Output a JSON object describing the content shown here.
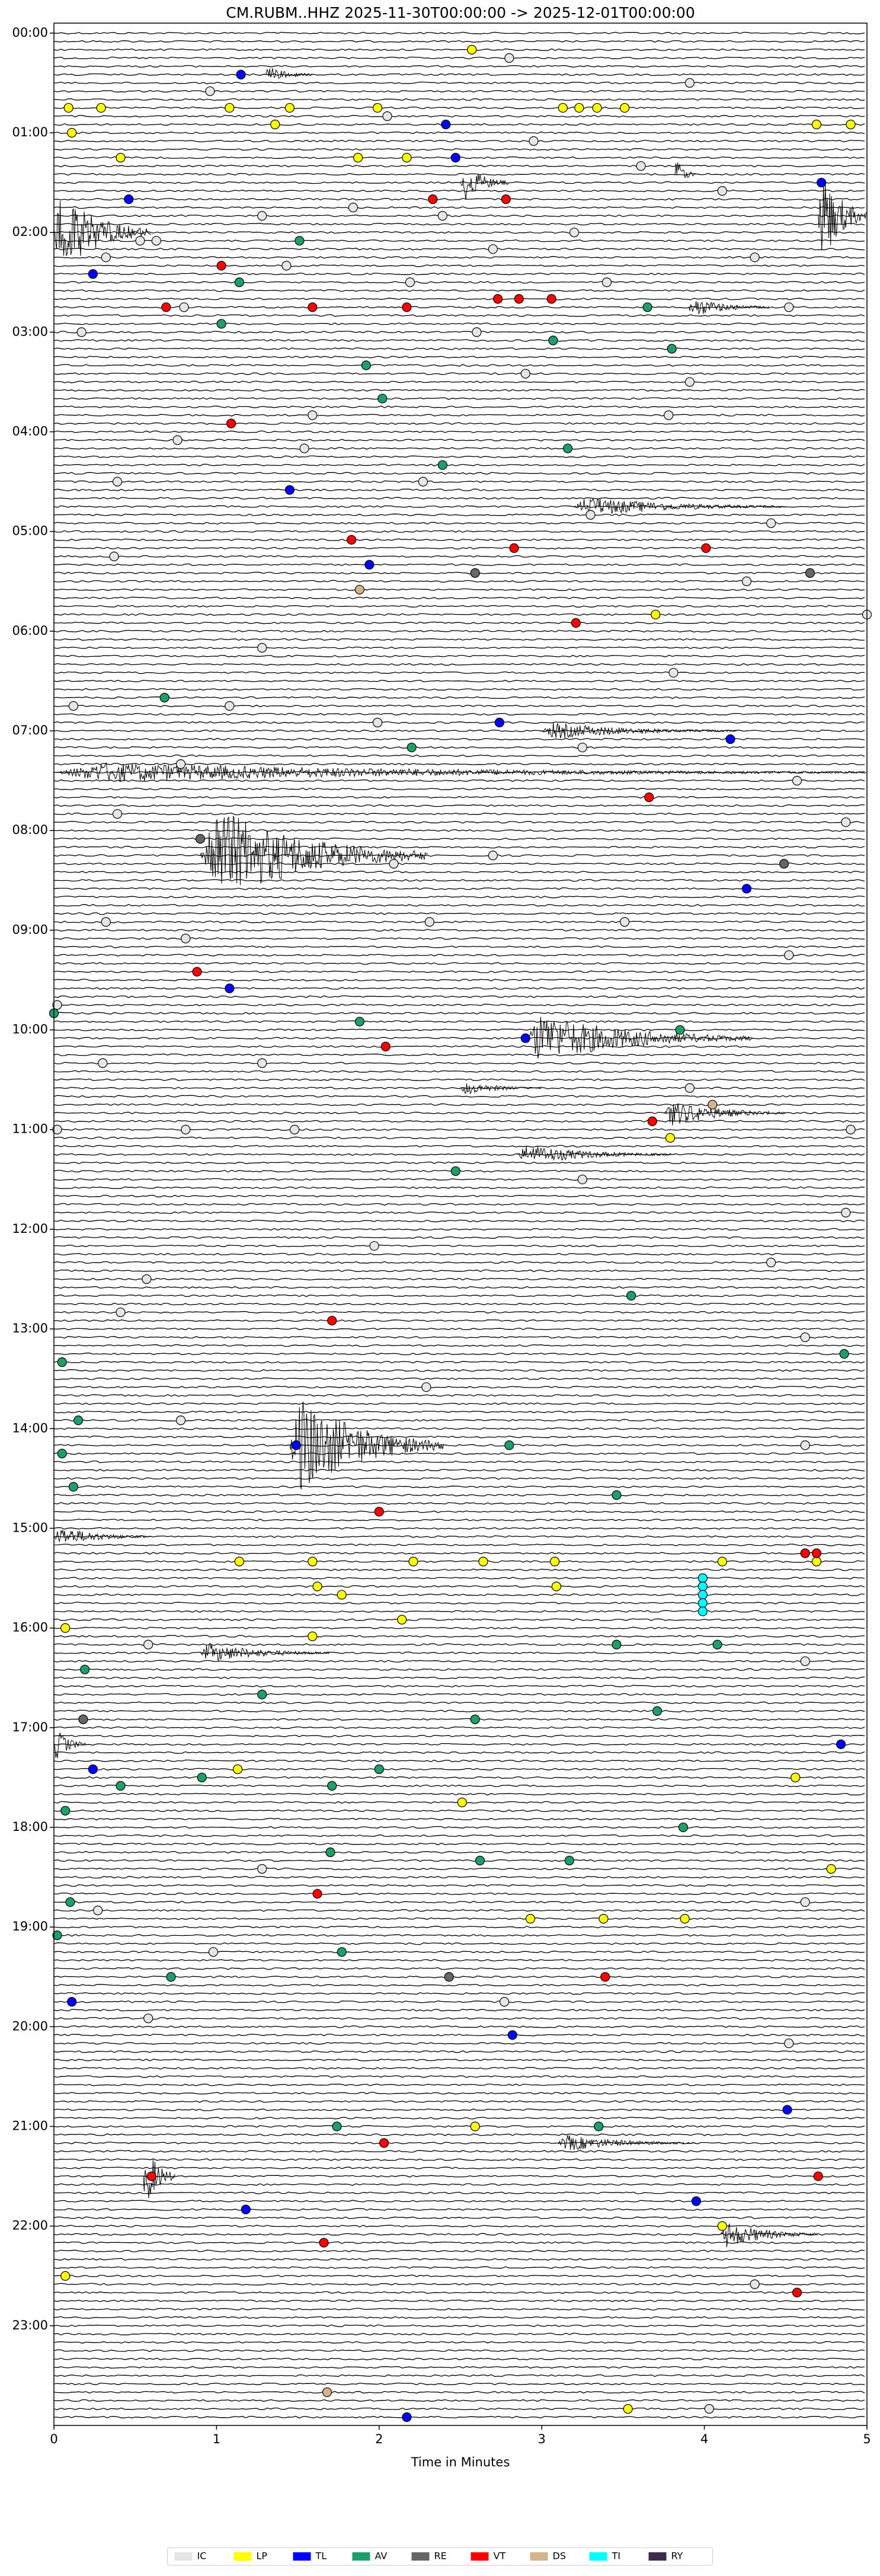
{
  "chart_data": {
    "type": "helicorder",
    "title": "CM.RUBM..HHZ  2025-11-30T00:00:00 -> 2025-12-01T00:00:00",
    "xlabel": "Time in Minutes",
    "xlim": [
      0,
      5
    ],
    "xticks": [
      0,
      1,
      2,
      3,
      4,
      5
    ],
    "ylim": [
      -6,
      1440
    ],
    "y_inverted": true,
    "yticks": [
      {
        "value": 0,
        "label": "00:00"
      },
      {
        "value": 60,
        "label": "01:00"
      },
      {
        "value": 120,
        "label": "02:00"
      },
      {
        "value": 180,
        "label": "03:00"
      },
      {
        "value": 240,
        "label": "04:00"
      },
      {
        "value": 300,
        "label": "05:00"
      },
      {
        "value": 360,
        "label": "06:00"
      },
      {
        "value": 420,
        "label": "07:00"
      },
      {
        "value": 480,
        "label": "08:00"
      },
      {
        "value": 540,
        "label": "09:00"
      },
      {
        "value": 600,
        "label": "10:00"
      },
      {
        "value": 660,
        "label": "11:00"
      },
      {
        "value": 720,
        "label": "12:00"
      },
      {
        "value": 780,
        "label": "13:00"
      },
      {
        "value": 840,
        "label": "14:00"
      },
      {
        "value": 900,
        "label": "15:00"
      },
      {
        "value": 960,
        "label": "16:00"
      },
      {
        "value": 1020,
        "label": "17:00"
      },
      {
        "value": 1080,
        "label": "18:00"
      },
      {
        "value": 1140,
        "label": "19:00"
      },
      {
        "value": 1200,
        "label": "20:00"
      },
      {
        "value": 1260,
        "label": "21:00"
      },
      {
        "value": 1320,
        "label": "22:00"
      },
      {
        "value": 1380,
        "label": "23:00"
      }
    ],
    "legend_loc": "lower center",
    "bursts": [
      {
        "y": 90,
        "x0": 2.5,
        "x1": 2.8,
        "amp": 12
      },
      {
        "y": 85,
        "x0": 3.82,
        "x1": 3.95,
        "amp": 10
      },
      {
        "y": 120,
        "x0": 0,
        "x1": 0.6,
        "amp": 25
      },
      {
        "y": 110,
        "x0": 4.7,
        "x1": 5,
        "amp": 30
      },
      {
        "y": 165,
        "x0": 3.9,
        "x1": 4.4,
        "amp": 6
      },
      {
        "y": 25,
        "x0": 1.3,
        "x1": 1.6,
        "amp": 5
      },
      {
        "y": 285,
        "x0": 3.2,
        "x1": 4.5,
        "amp": 6
      },
      {
        "y": 420,
        "x0": 3.0,
        "x1": 4.2,
        "amp": 5
      },
      {
        "y": 445,
        "x0": 0,
        "x1": 5,
        "amp": 6
      },
      {
        "y": 495,
        "x0": 0.9,
        "x1": 2.3,
        "amp": 30
      },
      {
        "y": 605,
        "x0": 2.9,
        "x1": 4.3,
        "amp": 15
      },
      {
        "y": 635,
        "x0": 2.5,
        "x1": 3.0,
        "amp": 4
      },
      {
        "y": 650,
        "x0": 3.75,
        "x1": 4.5,
        "amp": 8
      },
      {
        "y": 675,
        "x0": 2.85,
        "x1": 3.8,
        "amp": 6
      },
      {
        "y": 850,
        "x0": 1.45,
        "x1": 2.4,
        "amp": 30
      },
      {
        "y": 905,
        "x0": 0,
        "x1": 0.6,
        "amp": 6
      },
      {
        "y": 975,
        "x0": 0.9,
        "x1": 1.7,
        "amp": 6
      },
      {
        "y": 1030,
        "x0": 0,
        "x1": 0.2,
        "amp": 10
      },
      {
        "y": 1270,
        "x0": 3.1,
        "x1": 3.95,
        "amp": 5
      },
      {
        "y": 1290,
        "x0": 0.55,
        "x1": 0.75,
        "amp": 20
      },
      {
        "y": 1325,
        "x0": 4.1,
        "x1": 4.7,
        "amp": 8
      }
    ],
    "series": [
      {
        "name": "IC",
        "color": "#e6e6e6",
        "x": [
          0.96,
          3.91,
          2.8,
          2.05,
          2.95,
          3.61,
          4.11,
          1.28,
          1.84,
          2.39,
          3.2,
          0.53,
          0.63,
          2.7,
          4.31,
          0.32,
          1.43,
          2.19,
          3.4,
          0.8,
          4.52,
          0.17,
          2.6,
          3.91,
          2.9,
          1.59,
          0.76,
          3.78,
          1.54,
          0.39,
          2.27,
          3.3,
          4.41,
          0.37,
          4.26,
          5,
          1.28,
          3.81,
          0.12,
          1.08,
          1.99,
          3.25,
          0.78,
          4.57,
          0.39,
          2.7,
          2.09,
          4.87,
          3.51,
          2.31,
          0.32,
          0.81,
          4.52,
          0.02,
          1.28,
          3.91,
          0.3,
          0.02,
          0.81,
          1.48,
          4.9,
          3.25,
          1.97,
          4.87,
          4.41,
          0.57,
          0.41,
          4.62,
          2.29,
          0.78,
          4.62,
          0.58,
          4.62,
          1.28,
          4.62,
          0.27,
          0.98,
          2.77,
          0.58,
          4.52,
          4.31,
          4.03
        ],
        "y": [
          35,
          30,
          15,
          50,
          65,
          80,
          95,
          110,
          105,
          110,
          120,
          125,
          125,
          130,
          135,
          135,
          140,
          150,
          150,
          165,
          165,
          180,
          180,
          210,
          205,
          230,
          245,
          230,
          250,
          270,
          270,
          290,
          295,
          315,
          330,
          350,
          370,
          385,
          405,
          405,
          415,
          430,
          440,
          450,
          470,
          495,
          500,
          475,
          535,
          535,
          535,
          545,
          555,
          585,
          620,
          635,
          620,
          660,
          660,
          660,
          660,
          690,
          730,
          710,
          740,
          750,
          770,
          785,
          815,
          835,
          850,
          970,
          980,
          1105,
          1125,
          1130,
          1155,
          1185,
          1195,
          1210,
          1355,
          1430
        ]
      },
      {
        "name": "LP",
        "color": "#ffff00",
        "x": [
          2.57,
          0.09,
          0.29,
          1.08,
          1.45,
          1.99,
          3.13,
          3.23,
          3.34,
          3.51,
          1.36,
          4.69,
          4.9,
          0.11,
          0.41,
          1.87,
          2.17,
          3.7,
          3.79,
          4.11,
          4.69,
          1.14,
          1.59,
          2.21,
          2.64,
          3.08,
          1.62,
          1.77,
          2.14,
          1.59,
          0.07,
          3.09,
          1.13,
          4.56,
          2.51,
          4.78,
          2.93,
          3.38,
          3.88,
          2.59,
          4.11,
          0.07,
          3.53
        ],
        "y": [
          10,
          45,
          45,
          45,
          45,
          45,
          45,
          45,
          45,
          45,
          55,
          55,
          55,
          60,
          75,
          75,
          75,
          350,
          665,
          920,
          920,
          920,
          920,
          920,
          920,
          920,
          935,
          940,
          955,
          965,
          960,
          935,
          1045,
          1050,
          1065,
          1105,
          1135,
          1135,
          1135,
          1260,
          1320,
          1350,
          1430
        ]
      },
      {
        "name": "TL",
        "color": "#0000ff",
        "x": [
          1.15,
          2.41,
          2.47,
          0.46,
          4.72,
          0.24,
          1.45,
          1.94,
          2.74,
          4.16,
          4.26,
          1.08,
          2.9,
          1.49,
          0.24,
          4.84,
          2.82,
          0.11,
          4.51,
          1.18,
          3.95,
          2.17
        ],
        "y": [
          25,
          55,
          75,
          100,
          90,
          145,
          275,
          320,
          415,
          425,
          515,
          575,
          605,
          850,
          1045,
          1030,
          1205,
          1185,
          1250,
          1310,
          1305,
          1435
        ]
      },
      {
        "name": "AV",
        "color": "#1f9e6a",
        "x": [
          1.51,
          1.14,
          1.03,
          3.65,
          3.8,
          3.07,
          1.92,
          2.02,
          3.16,
          2.39,
          0.68,
          2.2,
          0,
          1.88,
          3.85,
          2.47,
          3.55,
          0.05,
          4.86,
          0.15,
          0.05,
          2.8,
          3.46,
          0.12,
          4.08,
          3.46,
          0.19,
          1.28,
          2.59,
          3.71,
          2.0,
          0.41,
          0.91,
          1.71,
          0.07,
          3.87,
          1.7,
          2.62,
          3.17,
          0.1,
          0.72,
          1.77,
          0.02,
          1.74,
          3.35
        ],
        "y": [
          125,
          150,
          175,
          165,
          190,
          185,
          200,
          220,
          250,
          260,
          400,
          430,
          590,
          595,
          600,
          685,
          760,
          800,
          795,
          835,
          855,
          850,
          880,
          875,
          970,
          970,
          985,
          1000,
          1015,
          1010,
          1045,
          1055,
          1050,
          1055,
          1070,
          1080,
          1095,
          1100,
          1100,
          1125,
          1170,
          1155,
          1145,
          1260,
          1260
        ]
      },
      {
        "name": "RE",
        "color": "#666666",
        "x": [
          0.9,
          2.59,
          4.65,
          4.49,
          2.43,
          0.18
        ],
        "y": [
          485,
          325,
          325,
          500,
          1170,
          1015
        ]
      },
      {
        "name": "VT",
        "color": "#ff0000",
        "x": [
          2.33,
          2.78,
          1.03,
          0.69,
          1.59,
          2.17,
          2.73,
          2.86,
          3.06,
          1.09,
          1.83,
          2.83,
          4.01,
          3.21,
          3.66,
          0.88,
          2.04,
          3.68,
          1.71,
          2.0,
          4.62,
          4.69,
          1.62,
          3.39,
          2.03,
          1.66,
          4.7,
          0.6,
          4.57
        ],
        "y": [
          100,
          100,
          140,
          165,
          165,
          165,
          160,
          160,
          160,
          235,
          305,
          310,
          310,
          355,
          460,
          565,
          610,
          655,
          775,
          890,
          915,
          915,
          1120,
          1170,
          1270,
          1330,
          1290,
          1290,
          1360
        ]
      },
      {
        "name": "DS",
        "color": "#d2b48c",
        "x": [
          1.88,
          4.05,
          1.68
        ],
        "y": [
          335,
          645,
          1420
        ]
      },
      {
        "name": "TI",
        "color": "#00ffff",
        "x": [
          3.99,
          3.99,
          3.99,
          3.99,
          3.99
        ],
        "y": [
          930,
          935,
          940,
          945,
          950
        ]
      },
      {
        "name": "RY",
        "color": "#3d2b4a",
        "x": [],
        "y": []
      }
    ]
  }
}
